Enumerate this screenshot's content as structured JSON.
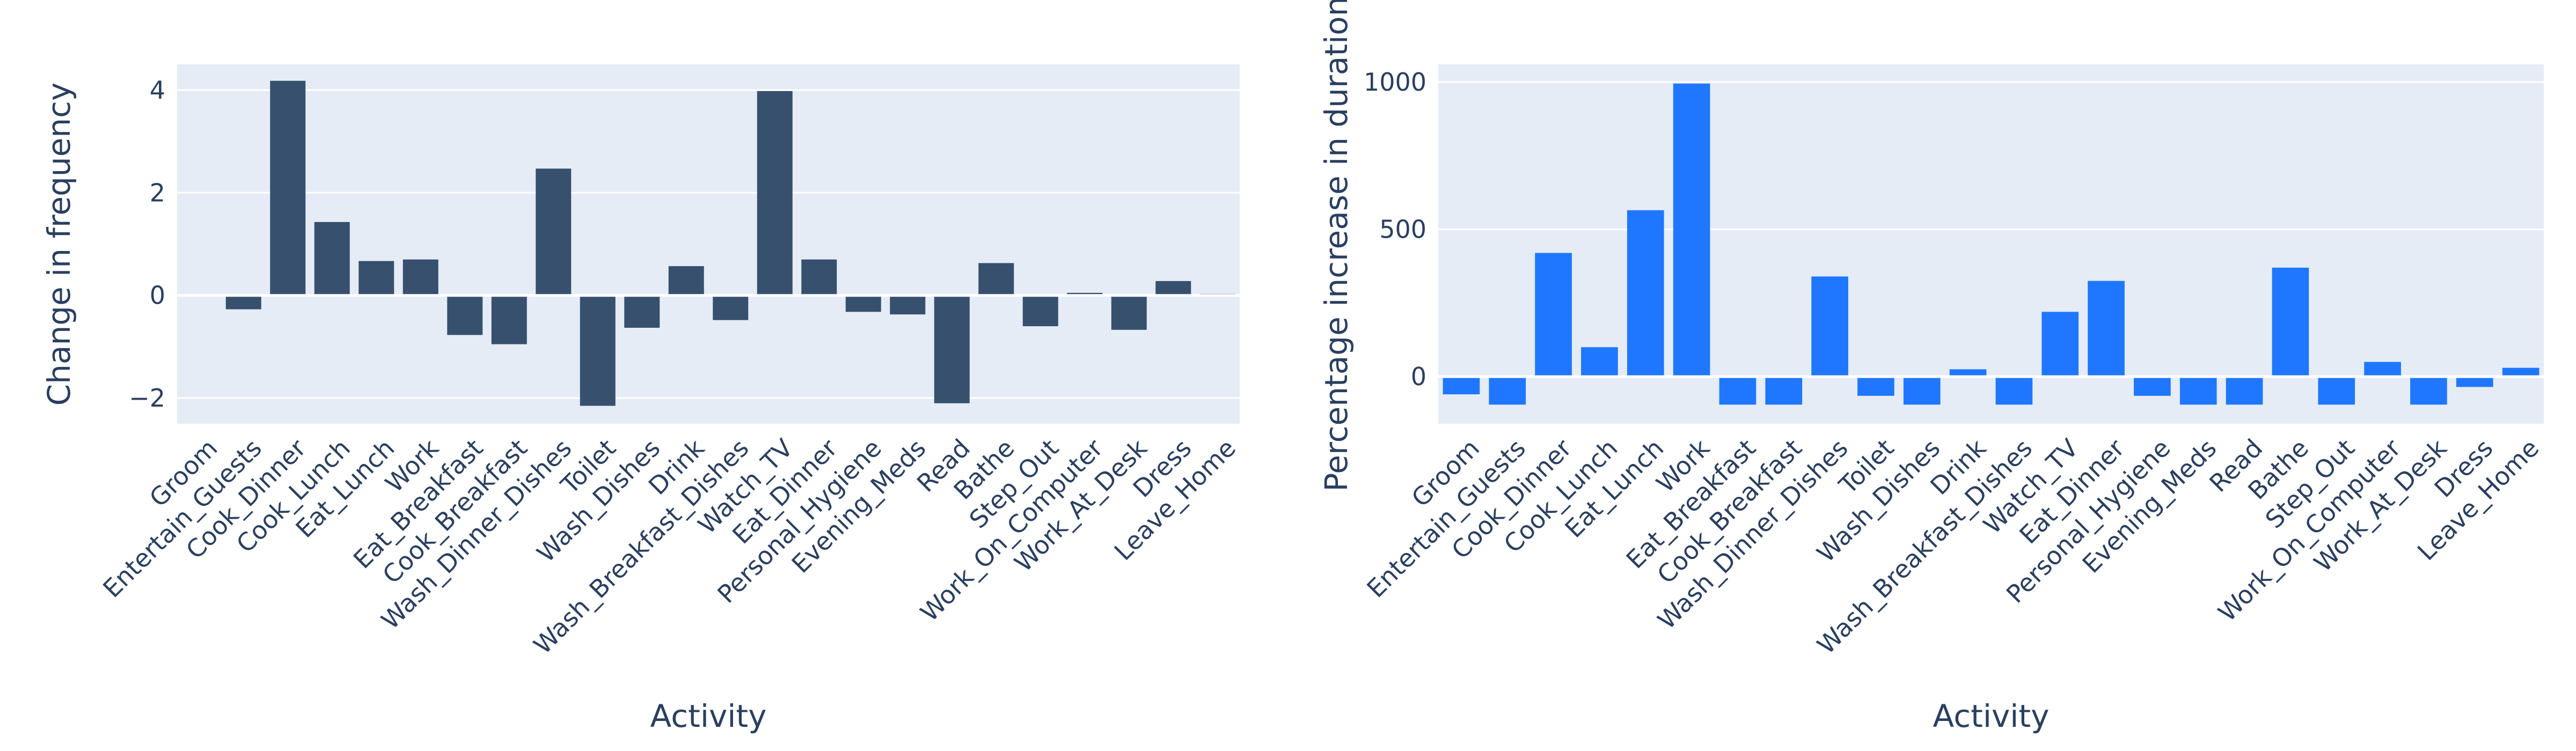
{
  "chart_data": [
    {
      "type": "bar",
      "xlabel": "Activity",
      "ylabel": "Change in frequency",
      "ylim": [
        -2.5,
        4.5
      ],
      "yticks": [
        -2,
        0,
        2,
        4
      ],
      "ytick_labels": [
        "−2",
        "0",
        "2",
        "4"
      ],
      "grid": true,
      "bar_color": "#36506e",
      "categories": [
        "Groom",
        "Entertain_Guests",
        "Cook_Dinner",
        "Cook_Lunch",
        "Eat_Lunch",
        "Work",
        "Eat_Breakfast",
        "Cook_Breakfast",
        "Wash_Dinner_Dishes",
        "Toilet",
        "Wash_Dishes",
        "Drink",
        "Wash_Breakfast_Dishes",
        "Watch_TV",
        "Eat_Dinner",
        "Personal_Hygiene",
        "Evening_Meds",
        "Read",
        "Bathe",
        "Step_Out",
        "Work_On_Computer",
        "Work_At_Desk",
        "Dress",
        "Leave_Home"
      ],
      "values": [
        -0.02,
        -0.27,
        4.18,
        1.43,
        0.67,
        0.7,
        -0.77,
        -0.95,
        2.47,
        -2.15,
        -0.63,
        0.57,
        -0.48,
        3.98,
        0.7,
        -0.32,
        -0.37,
        -2.1,
        0.63,
        -0.6,
        0.05,
        -0.67,
        0.28,
        0.03
      ]
    },
    {
      "type": "bar",
      "xlabel": "Activity",
      "ylabel": "Percentage increase in duration",
      "ylim": [
        -160,
        1060
      ],
      "yticks": [
        0,
        500,
        1000
      ],
      "ytick_labels": [
        "0",
        "500",
        "1000"
      ],
      "grid": true,
      "bar_color": "#1f77ff",
      "categories": [
        "Groom",
        "Entertain_Guests",
        "Cook_Dinner",
        "Cook_Lunch",
        "Eat_Lunch",
        "Work",
        "Eat_Breakfast",
        "Cook_Breakfast",
        "Wash_Dinner_Dishes",
        "Toilet",
        "Wash_Dishes",
        "Drink",
        "Wash_Breakfast_Dishes",
        "Watch_TV",
        "Eat_Dinner",
        "Personal_Hygiene",
        "Evening_Meds",
        "Read",
        "Bathe",
        "Step_Out",
        "Work_On_Computer",
        "Work_At_Desk",
        "Dress",
        "Leave_Home"
      ],
      "values": [
        -60,
        -95,
        420,
        100,
        565,
        995,
        -95,
        -95,
        340,
        -65,
        -95,
        25,
        -95,
        220,
        325,
        -65,
        -95,
        -95,
        370,
        -95,
        50,
        -95,
        -35,
        30
      ]
    }
  ]
}
